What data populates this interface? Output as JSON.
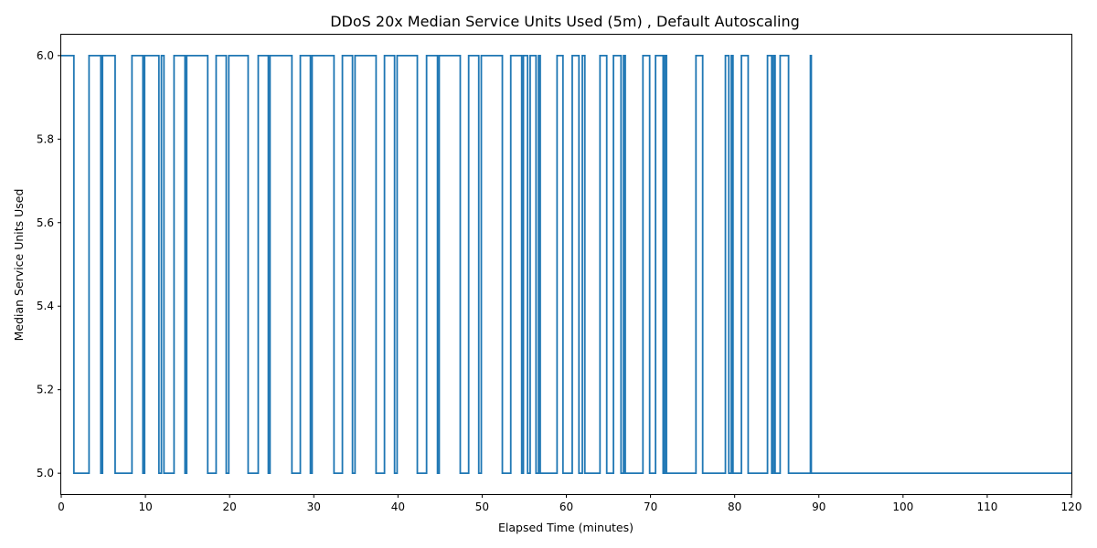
{
  "chart_data": {
    "type": "line",
    "title": "DDoS 20x Median Service Units Used (5m) , Default Autoscaling",
    "xlabel": "Elapsed Time (minutes)",
    "ylabel": "Median Service Units Used",
    "xlim": [
      0,
      120
    ],
    "ylim": [
      4.95,
      6.05
    ],
    "x_ticks": [
      0,
      10,
      20,
      30,
      40,
      50,
      60,
      70,
      80,
      90,
      100,
      110,
      120
    ],
    "y_ticks": [
      5.0,
      5.2,
      5.4,
      5.6,
      5.8,
      6.0
    ],
    "grid": false,
    "series_color": "#1f77b4",
    "series": [
      {
        "step_segments": [
          [
            0,
            1.5,
            6
          ],
          [
            1.5,
            3.3,
            5
          ],
          [
            3.3,
            4.7,
            6
          ],
          [
            4.7,
            4.9,
            5
          ],
          [
            4.9,
            6.4,
            6
          ],
          [
            6.4,
            8.4,
            5
          ],
          [
            8.4,
            9.7,
            6
          ],
          [
            9.7,
            9.9,
            5
          ],
          [
            9.9,
            11.6,
            6
          ],
          [
            11.6,
            11.9,
            5
          ],
          [
            11.9,
            12.2,
            6
          ],
          [
            12.2,
            13.4,
            5
          ],
          [
            13.4,
            14.7,
            6
          ],
          [
            14.7,
            14.9,
            5
          ],
          [
            14.9,
            17.4,
            6
          ],
          [
            17.4,
            18.4,
            5
          ],
          [
            18.4,
            19.6,
            6
          ],
          [
            19.6,
            19.9,
            5
          ],
          [
            19.9,
            22.2,
            6
          ],
          [
            22.2,
            23.4,
            5
          ],
          [
            23.4,
            24.6,
            6
          ],
          [
            24.6,
            24.8,
            5
          ],
          [
            24.8,
            27.4,
            6
          ],
          [
            27.4,
            28.4,
            5
          ],
          [
            28.4,
            29.6,
            6
          ],
          [
            29.6,
            29.8,
            5
          ],
          [
            29.8,
            32.4,
            6
          ],
          [
            32.4,
            33.4,
            5
          ],
          [
            33.4,
            34.6,
            6
          ],
          [
            34.6,
            34.9,
            5
          ],
          [
            34.9,
            37.4,
            6
          ],
          [
            37.4,
            38.4,
            5
          ],
          [
            38.4,
            39.6,
            6
          ],
          [
            39.6,
            39.9,
            5
          ],
          [
            39.9,
            42.3,
            6
          ],
          [
            42.3,
            43.4,
            5
          ],
          [
            43.4,
            44.7,
            6
          ],
          [
            44.7,
            44.9,
            5
          ],
          [
            44.9,
            47.4,
            6
          ],
          [
            47.4,
            48.4,
            5
          ],
          [
            48.4,
            49.6,
            6
          ],
          [
            49.6,
            49.9,
            5
          ],
          [
            49.9,
            52.4,
            6
          ],
          [
            52.4,
            53.4,
            5
          ],
          [
            53.4,
            54.7,
            6
          ],
          [
            54.7,
            54.9,
            5
          ],
          [
            54.9,
            55.4,
            6
          ],
          [
            55.4,
            55.7,
            5
          ],
          [
            55.7,
            56.4,
            6
          ],
          [
            56.4,
            56.7,
            5
          ],
          [
            56.7,
            56.9,
            6
          ],
          [
            56.9,
            58.9,
            5
          ],
          [
            58.9,
            59.6,
            6
          ],
          [
            59.6,
            60.7,
            5
          ],
          [
            60.7,
            61.5,
            6
          ],
          [
            61.5,
            61.9,
            5
          ],
          [
            61.9,
            62.2,
            6
          ],
          [
            62.2,
            64.0,
            5
          ],
          [
            64.0,
            64.8,
            6
          ],
          [
            64.8,
            65.6,
            5
          ],
          [
            65.6,
            66.5,
            6
          ],
          [
            66.5,
            66.8,
            5
          ],
          [
            66.8,
            67.0,
            6
          ],
          [
            67.0,
            69.1,
            5
          ],
          [
            69.1,
            69.9,
            6
          ],
          [
            69.9,
            70.6,
            5
          ],
          [
            70.6,
            71.5,
            6
          ],
          [
            71.5,
            71.7,
            5
          ],
          [
            71.7,
            71.9,
            6
          ],
          [
            71.9,
            75.4,
            5
          ],
          [
            75.4,
            76.2,
            6
          ],
          [
            76.2,
            78.9,
            5
          ],
          [
            78.9,
            79.3,
            6
          ],
          [
            79.3,
            79.6,
            5
          ],
          [
            79.6,
            79.8,
            6
          ],
          [
            79.8,
            80.8,
            5
          ],
          [
            80.8,
            81.6,
            6
          ],
          [
            81.6,
            83.9,
            5
          ],
          [
            83.9,
            84.4,
            6
          ],
          [
            84.4,
            84.6,
            5
          ],
          [
            84.6,
            84.8,
            6
          ],
          [
            84.8,
            85.4,
            5
          ],
          [
            85.4,
            86.4,
            6
          ],
          [
            86.4,
            89.0,
            5
          ],
          [
            89.0,
            89.1,
            6
          ],
          [
            89.1,
            120,
            5
          ]
        ]
      }
    ]
  }
}
